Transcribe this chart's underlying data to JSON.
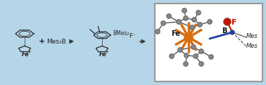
{
  "bg_color": "#b5d5e8",
  "outer_border_color": "#6aabe0",
  "inset_bg": "#ffffff",
  "inset_border_color": "#aaaaaa",
  "fig_width": 3.78,
  "fig_height": 1.21,
  "dpi": 100,
  "fe_orange": "#d96e10",
  "grey_atom": "#888888",
  "dark_grey": "#444444",
  "blue_bond": "#1a3faa",
  "fluorine_color": "#cc1100",
  "arrow_color": "#333333",
  "text_color": "#222222",
  "label_ferrocene1": "Fe",
  "label_ferrocene2": "Fe",
  "label_mes3b": "Mes₃B",
  "label_bmes2": "BMes₂",
  "label_fminus": "F⁻",
  "label_mes_top": "Mes",
  "label_mes_right": "Mes",
  "label_b": "B",
  "label_fe_inset": "Fe",
  "label_f_inset": "F",
  "plus_sign": "+"
}
